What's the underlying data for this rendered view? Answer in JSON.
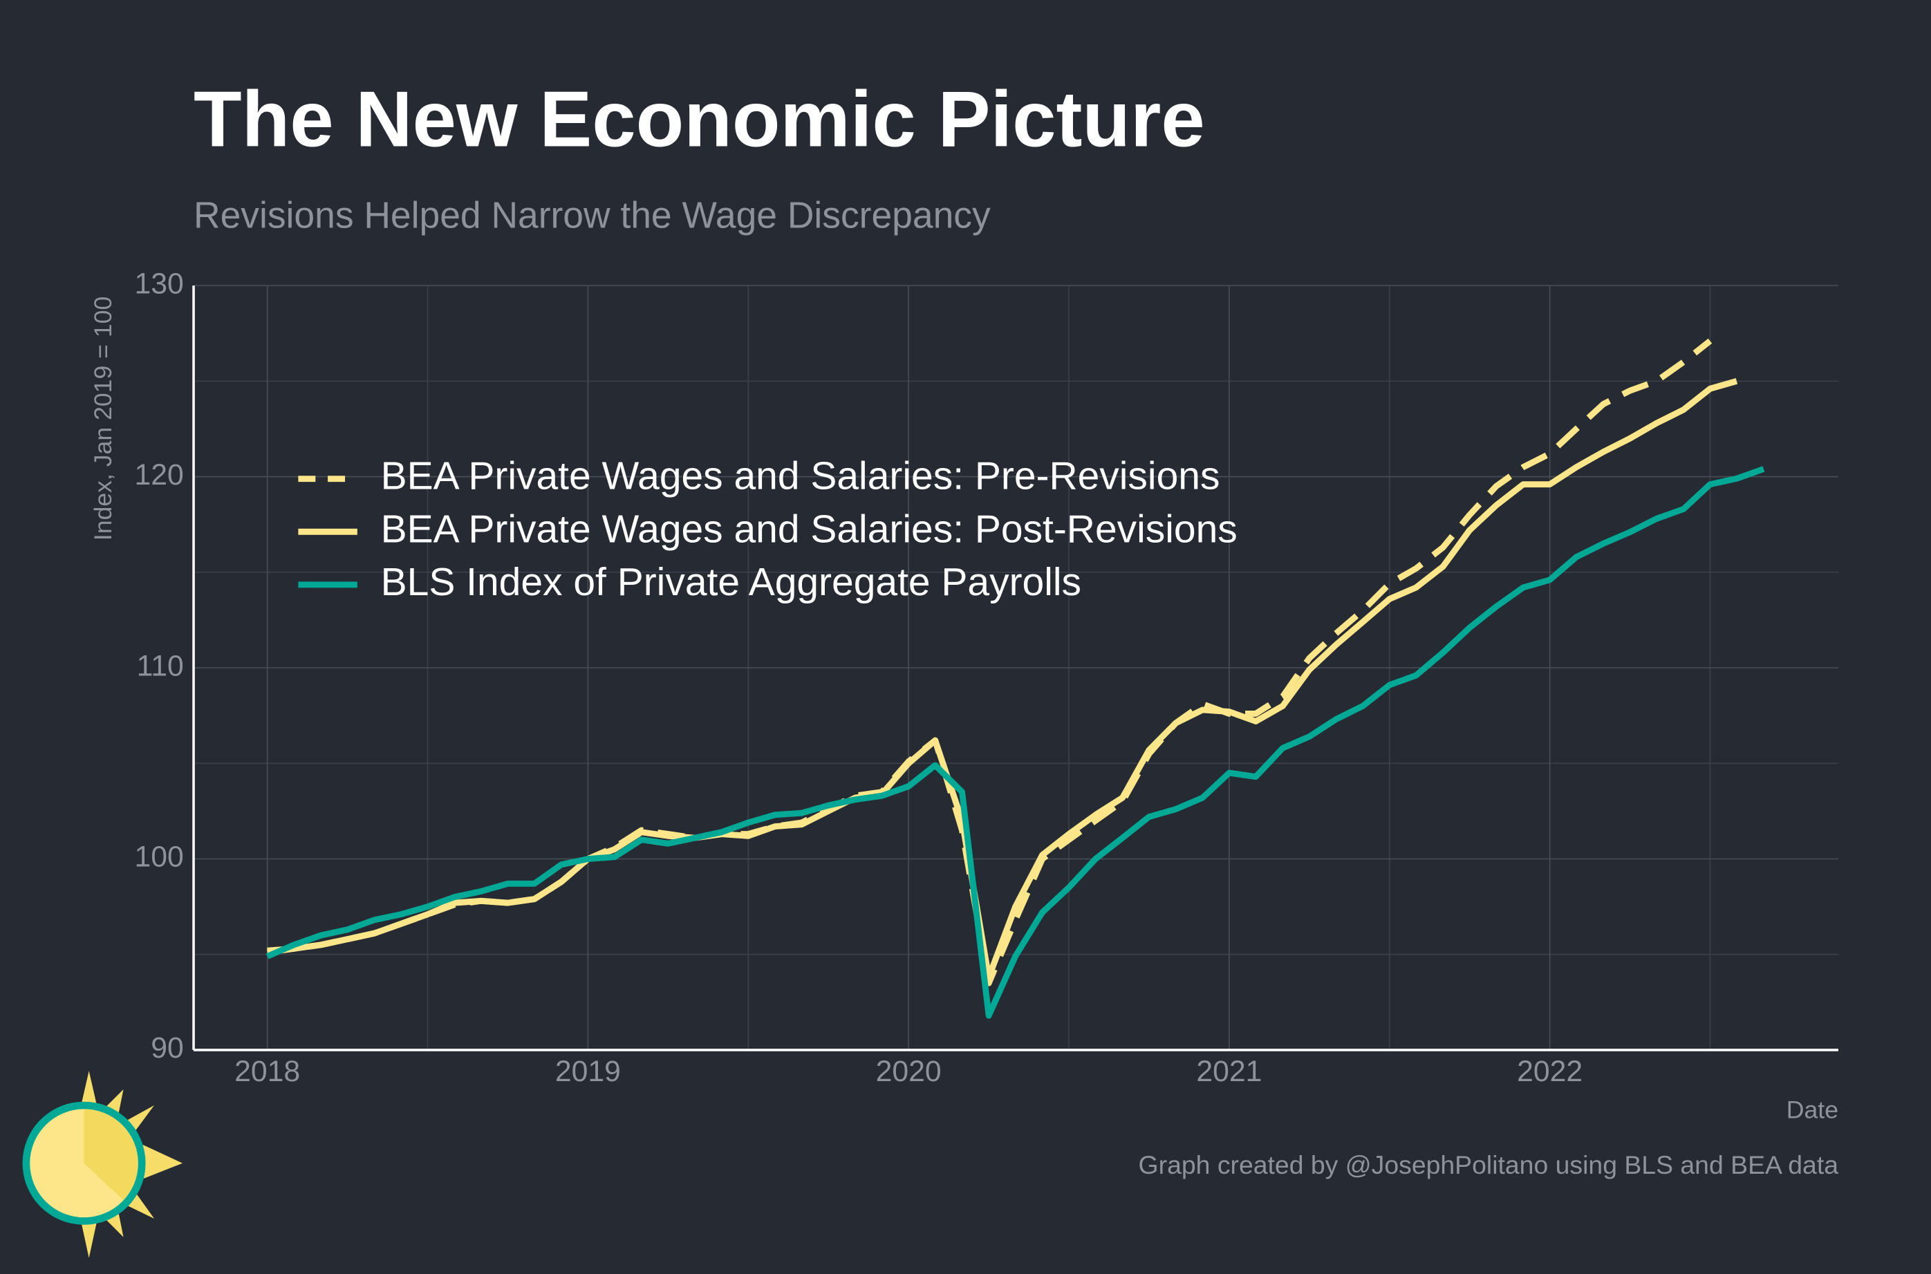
{
  "chart_data": {
    "type": "line",
    "title": "The New Economic Picture",
    "subtitle": "Revisions Helped Narrow the Wage Discrepancy",
    "y_label": "Index, Jan 2019 = 100",
    "x_label": "Date",
    "caption": "Graph created by @JosephPolitano using BLS and BEA data",
    "xlim": [
      2017.77,
      2022.9
    ],
    "xticks": [
      2018,
      2019,
      2020,
      2021,
      2022
    ],
    "xminor": [
      2018.5,
      2019.5,
      2020.5,
      2021.5,
      2022.5
    ],
    "ylim": [
      90,
      130
    ],
    "yticks": [
      90,
      100,
      110,
      120,
      130
    ],
    "yminor": [
      95,
      105,
      115,
      125
    ],
    "grid": true,
    "legend": "upper left",
    "series": [
      {
        "name": "BEA Private Wages and Salaries: Pre-Revisions",
        "color": "#fde68a",
        "dash": true,
        "x": [
          2018,
          2018.083,
          2018.167,
          2018.25,
          2018.333,
          2018.417,
          2018.5,
          2018.583,
          2018.667,
          2018.75,
          2018.833,
          2018.917,
          2019,
          2019.083,
          2019.167,
          2019.25,
          2019.333,
          2019.417,
          2019.5,
          2019.583,
          2019.667,
          2019.75,
          2019.833,
          2019.917,
          2020,
          2020.083,
          2020.167,
          2020.25,
          2020.333,
          2020.417,
          2020.5,
          2020.583,
          2020.667,
          2020.75,
          2020.833,
          2020.917,
          2021,
          2021.083,
          2021.167,
          2021.25,
          2021.333,
          2021.417,
          2021.5,
          2021.583,
          2021.667,
          2021.75,
          2021.833,
          2021.917,
          2022,
          2022.083,
          2022.167,
          2022.25,
          2022.333,
          2022.417,
          2022.5
        ],
        "values": [
          95.2,
          95.3,
          95.5,
          95.8,
          96.1,
          96.6,
          97.1,
          97.6,
          97.8,
          97.7,
          97.9,
          98.8,
          100,
          100.6,
          101.5,
          101.3,
          101.1,
          101.3,
          101.3,
          101.7,
          101.9,
          102.6,
          103.3,
          103.5,
          105.1,
          106.2,
          101.5,
          93.5,
          96.8,
          100.0,
          101.0,
          102.0,
          103.0,
          105.5,
          107.1,
          108.1,
          107.6,
          107.6,
          108.5,
          110.5,
          111.8,
          113.0,
          114.4,
          115.2,
          116.3,
          118.0,
          119.5,
          120.5,
          121.2,
          122.5,
          123.8,
          124.5,
          125.0,
          126.0,
          127.1
        ]
      },
      {
        "name": "BEA Private Wages and Salaries: Post-Revisions",
        "color": "#fde68a",
        "dash": false,
        "x": [
          2018,
          2018.083,
          2018.167,
          2018.25,
          2018.333,
          2018.417,
          2018.5,
          2018.583,
          2018.667,
          2018.75,
          2018.833,
          2018.917,
          2019,
          2019.083,
          2019.167,
          2019.25,
          2019.333,
          2019.417,
          2019.5,
          2019.583,
          2019.667,
          2019.75,
          2019.833,
          2019.917,
          2020,
          2020.083,
          2020.167,
          2020.25,
          2020.333,
          2020.417,
          2020.5,
          2020.583,
          2020.667,
          2020.75,
          2020.833,
          2020.917,
          2021,
          2021.083,
          2021.167,
          2021.25,
          2021.333,
          2021.417,
          2021.5,
          2021.583,
          2021.667,
          2021.75,
          2021.833,
          2021.917,
          2022,
          2022.083,
          2022.167,
          2022.25,
          2022.333,
          2022.417,
          2022.5,
          2022.583
        ],
        "values": [
          95.1,
          95.3,
          95.5,
          95.8,
          96.1,
          96.6,
          97.1,
          97.7,
          97.8,
          97.7,
          97.9,
          98.8,
          100,
          100.5,
          101.4,
          101.2,
          101.1,
          101.3,
          101.2,
          101.7,
          101.8,
          102.5,
          103.2,
          103.4,
          105.0,
          106.2,
          102.0,
          93.8,
          97.5,
          100.2,
          101.3,
          102.3,
          103.2,
          105.7,
          107.1,
          107.8,
          107.7,
          107.2,
          108.0,
          109.9,
          111.2,
          112.4,
          113.6,
          114.2,
          115.3,
          117.2,
          118.5,
          119.6,
          119.6,
          120.5,
          121.3,
          122.0,
          122.8,
          123.5,
          124.6,
          125.0
        ]
      },
      {
        "name": "BLS Index of Private Aggregate Payrolls",
        "color": "#00a896",
        "dash": false,
        "x": [
          2018,
          2018.083,
          2018.167,
          2018.25,
          2018.333,
          2018.417,
          2018.5,
          2018.583,
          2018.667,
          2018.75,
          2018.833,
          2018.917,
          2019,
          2019.083,
          2019.167,
          2019.25,
          2019.333,
          2019.417,
          2019.5,
          2019.583,
          2019.667,
          2019.75,
          2019.833,
          2019.917,
          2020,
          2020.083,
          2020.167,
          2020.25,
          2020.333,
          2020.417,
          2020.5,
          2020.583,
          2020.667,
          2020.75,
          2020.833,
          2020.917,
          2021,
          2021.083,
          2021.167,
          2021.25,
          2021.333,
          2021.417,
          2021.5,
          2021.583,
          2021.667,
          2021.75,
          2021.833,
          2021.917,
          2022,
          2022.083,
          2022.167,
          2022.25,
          2022.333,
          2022.417,
          2022.5,
          2022.583,
          2022.667
        ],
        "values": [
          94.9,
          95.5,
          96.0,
          96.3,
          96.8,
          97.1,
          97.5,
          98.0,
          98.3,
          98.7,
          98.7,
          99.7,
          100.0,
          100.1,
          101.0,
          100.8,
          101.1,
          101.4,
          101.9,
          102.3,
          102.4,
          102.8,
          103.1,
          103.3,
          103.8,
          104.9,
          103.5,
          91.8,
          94.9,
          97.2,
          98.5,
          100.0,
          101.1,
          102.2,
          102.6,
          103.2,
          104.5,
          104.3,
          105.8,
          106.4,
          107.3,
          108.0,
          109.1,
          109.6,
          110.8,
          112.1,
          113.2,
          114.2,
          114.6,
          115.8,
          116.5,
          117.1,
          117.8,
          118.3,
          119.6,
          119.9,
          120.4
        ]
      }
    ]
  }
}
